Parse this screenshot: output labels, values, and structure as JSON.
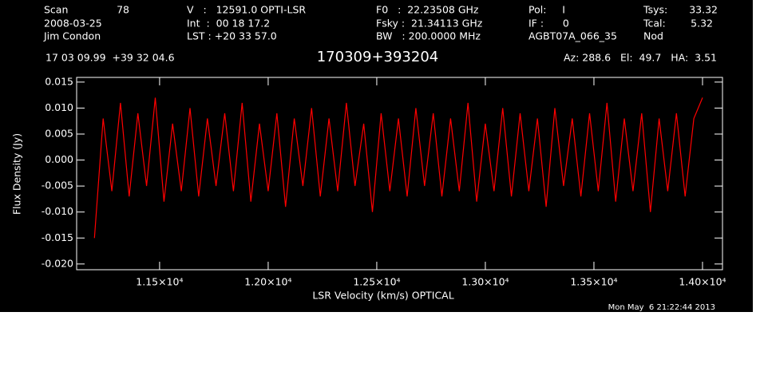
{
  "header": {
    "scan_label": "Scan",
    "scan_number": "78",
    "date": "2008-03-25",
    "observer": "Jim Condon",
    "velocity": "V   :   12591.0 OPTI-LSR",
    "integration": "Int  :  00 18 17.2",
    "lst": "LST : +20 33 57.0",
    "f0": "F0   :  22.23508 GHz",
    "fsky": "Fsky :  21.34113 GHz",
    "bw": "BW   : 200.0000 MHz",
    "pol": "Pol:     I",
    "if": "IF :      0",
    "project": "AGBT07A_066_35",
    "tsys_label": "Tsys:",
    "tsys": "33.32",
    "tcal_label": "Tcal:",
    "tcal": "5.32",
    "mode": "Nod",
    "coords": "17 03 09.99  +39 32 04.6",
    "azelha": "Az: 288.6   El:  49.7   HA:  3.51"
  },
  "footer": {
    "timestamp": "Mon May  6 21:22:44 2013"
  },
  "chart_data": {
    "type": "line",
    "title": "170309+393204",
    "x_label": "LSR Velocity (km/s) OPTICAL",
    "y_label": "Flux Density (Jy)",
    "xlim": [
      11118,
      14092
    ],
    "ylim": [
      -0.0211,
      0.0159
    ],
    "xticks": [
      {
        "value": 11500,
        "label": "1.15×10⁴"
      },
      {
        "value": 12000,
        "label": "1.20×10⁴"
      },
      {
        "value": 12500,
        "label": "1.25×10⁴"
      },
      {
        "value": 13000,
        "label": "1.30×10⁴"
      },
      {
        "value": 13500,
        "label": "1.35×10⁴"
      },
      {
        "value": 14000,
        "label": "1.40×10⁴"
      }
    ],
    "yticks": [
      0.015,
      {
        "value": 0.01,
        "label": "0.010"
      },
      0.005,
      {
        "value": 0,
        "label": "0.000"
      },
      -0.005,
      {
        "value": -0.01,
        "label": "-0.010"
      },
      -0.015,
      {
        "value": -0.02,
        "label": "-0.020"
      }
    ],
    "x": [
      11200,
      11240,
      11280,
      11320,
      11360,
      11400,
      11440,
      11480,
      11520,
      11560,
      11600,
      11640,
      11680,
      11720,
      11760,
      11800,
      11840,
      11880,
      11920,
      11960,
      12000,
      12040,
      12080,
      12120,
      12160,
      12200,
      12240,
      12280,
      12320,
      12360,
      12400,
      12440,
      12480,
      12520,
      12560,
      12600,
      12640,
      12680,
      12720,
      12760,
      12800,
      12840,
      12880,
      12920,
      12960,
      13000,
      13040,
      13080,
      13120,
      13160,
      13200,
      13240,
      13280,
      13320,
      13360,
      13400,
      13440,
      13480,
      13520,
      13560,
      13600,
      13640,
      13680,
      13720,
      13760,
      13800,
      13840,
      13880,
      13920,
      13960,
      14000
    ],
    "series": [
      {
        "color": "#ff0000",
        "values": [
          -0.015,
          0.008,
          -0.006,
          0.011,
          -0.007,
          0.009,
          -0.005,
          0.012,
          -0.008,
          0.007,
          -0.006,
          0.01,
          -0.007,
          0.008,
          -0.005,
          0.009,
          -0.006,
          0.011,
          -0.008,
          0.007,
          -0.006,
          0.009,
          -0.009,
          0.008,
          -0.005,
          0.01,
          -0.007,
          0.008,
          -0.006,
          0.011,
          -0.005,
          0.007,
          -0.01,
          0.009,
          -0.006,
          0.008,
          -0.007,
          0.01,
          -0.005,
          0.009,
          -0.007,
          0.008,
          -0.006,
          0.011,
          -0.008,
          0.007,
          -0.006,
          0.01,
          -0.007,
          0.009,
          -0.006,
          0.008,
          -0.009,
          0.01,
          -0.005,
          0.008,
          -0.007,
          0.009,
          -0.006,
          0.011,
          -0.008,
          0.008,
          -0.006,
          0.009,
          -0.01,
          0.008,
          -0.006,
          0.009,
          -0.007,
          0.008,
          0.012
        ]
      }
    ]
  }
}
